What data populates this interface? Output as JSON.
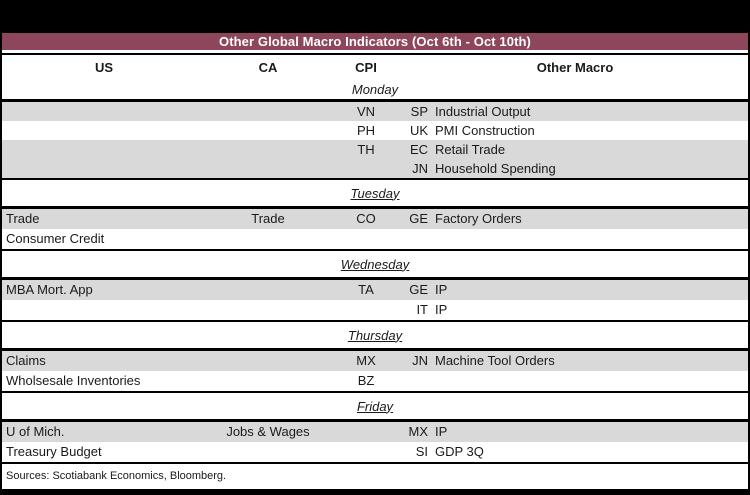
{
  "title": "Other Global Macro Indicators (Oct 6th - Oct 10th)",
  "columns": [
    "US",
    "CA",
    "CPI",
    "Other Macro"
  ],
  "days": [
    {
      "label": "Monday",
      "rows": [
        {
          "us": "",
          "ca": "",
          "cpi": "VN",
          "om_code": "SP",
          "om_label": "Industrial Output"
        },
        {
          "us": "",
          "ca": "",
          "cpi": "PH",
          "om_code": "UK",
          "om_label": "PMI Construction"
        },
        {
          "us": "",
          "ca": "",
          "cpi": "TH",
          "om_code": "EC",
          "om_label": "Retail Trade"
        },
        {
          "us": "",
          "ca": "",
          "cpi": "",
          "om_code": "JN",
          "om_label": "Household Spending"
        }
      ]
    },
    {
      "label": "Tuesday",
      "rows": [
        {
          "us": "Trade",
          "ca": "Trade",
          "cpi": "CO",
          "om_code": "GE",
          "om_label": "Factory Orders"
        },
        {
          "us": "Consumer Credit",
          "ca": "",
          "cpi": "",
          "om_code": "",
          "om_label": ""
        }
      ]
    },
    {
      "label": "Wednesday",
      "rows": [
        {
          "us": "MBA Mort. App",
          "ca": "",
          "cpi": "TA",
          "om_code": "GE",
          "om_label": "IP"
        },
        {
          "us": "",
          "ca": "",
          "cpi": "",
          "om_code": "IT",
          "om_label": "IP"
        }
      ]
    },
    {
      "label": "Thursday",
      "rows": [
        {
          "us": "Claims",
          "ca": "",
          "cpi": "MX",
          "om_code": "JN",
          "om_label": "Machine Tool Orders"
        },
        {
          "us": "Wholsesale Inventories",
          "ca": "",
          "cpi": "BZ",
          "om_code": "",
          "om_label": ""
        }
      ]
    },
    {
      "label": "Friday",
      "rows": [
        {
          "us": "U of Mich.",
          "ca": "Jobs & Wages",
          "cpi": "",
          "om_code": "MX",
          "om_label": "IP"
        },
        {
          "us": "Treasury Budget",
          "ca": "",
          "cpi": "",
          "om_code": "SI",
          "om_label": "GDP 3Q"
        }
      ]
    }
  ],
  "footer": "Sources: Scotiabank Economics, Bloomberg.",
  "colors": {
    "accent": "#8D465C",
    "row_shade": "#D9D9D9",
    "border": "#000000",
    "title_text": "#FFFFFF"
  }
}
